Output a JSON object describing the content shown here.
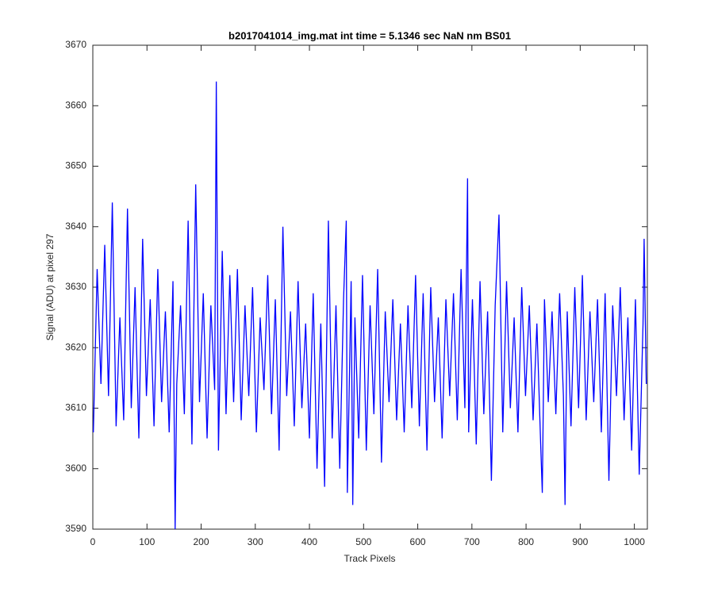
{
  "chart_data": {
    "type": "line",
    "title": "b2017041014_img.mat int time = 5.1346 sec  NaN nm BS01",
    "x_label": "Track Pixels",
    "y_label": "Signal (ADU) at pixel 297",
    "xlim": [
      0,
      1024
    ],
    "ylim": [
      3590,
      3670
    ],
    "xticks": [
      0,
      100,
      200,
      300,
      400,
      500,
      600,
      700,
      800,
      900,
      1000
    ],
    "yticks": [
      3590,
      3600,
      3610,
      3620,
      3630,
      3640,
      3650,
      3660,
      3670
    ],
    "box": true,
    "series": [
      {
        "color": "#0000ff",
        "x": [
          1,
          8,
          15,
          22,
          29,
          36,
          43,
          50,
          57,
          64,
          71,
          78,
          85,
          92,
          99,
          106,
          113,
          120,
          127,
          134,
          141,
          148,
          152,
          155,
          162,
          169,
          176,
          183,
          190,
          197,
          204,
          211,
          218,
          225,
          228,
          232,
          239,
          246,
          253,
          260,
          267,
          274,
          281,
          288,
          295,
          302,
          309,
          316,
          323,
          330,
          337,
          344,
          351,
          358,
          365,
          372,
          379,
          386,
          393,
          400,
          407,
          414,
          421,
          428,
          435,
          442,
          449,
          456,
          463,
          468,
          470,
          477,
          480,
          484,
          491,
          498,
          505,
          512,
          519,
          526,
          533,
          540,
          547,
          554,
          561,
          568,
          575,
          582,
          589,
          596,
          603,
          610,
          617,
          624,
          631,
          638,
          645,
          652,
          659,
          666,
          673,
          680,
          687,
          692,
          694,
          701,
          708,
          715,
          722,
          729,
          736,
          743,
          750,
          757,
          764,
          771,
          778,
          785,
          792,
          799,
          806,
          813,
          820,
          827,
          830,
          834,
          841,
          848,
          855,
          862,
          869,
          872,
          876,
          883,
          890,
          897,
          904,
          911,
          918,
          925,
          932,
          939,
          946,
          953,
          960,
          967,
          974,
          981,
          988,
          995,
          1002,
          1009,
          1016,
          1018,
          1022
        ],
        "values": [
          3606,
          3633,
          3614,
          3637,
          3612,
          3644,
          3607,
          3625,
          3608,
          3643,
          3610,
          3630,
          3605,
          3638,
          3612,
          3628,
          3607,
          3633,
          3611,
          3626,
          3606,
          3631,
          3590,
          3614,
          3627,
          3609,
          3641,
          3604,
          3647,
          3611,
          3629,
          3605,
          3627,
          3613,
          3664,
          3603,
          3636,
          3609,
          3632,
          3611,
          3633,
          3608,
          3627,
          3612,
          3630,
          3606,
          3625,
          3613,
          3632,
          3609,
          3628,
          3603,
          3640,
          3612,
          3626,
          3607,
          3631,
          3610,
          3624,
          3605,
          3629,
          3600,
          3624,
          3597,
          3641,
          3605,
          3627,
          3600,
          3628,
          3641,
          3596,
          3631,
          3594,
          3625,
          3605,
          3632,
          3603,
          3627,
          3609,
          3633,
          3601,
          3626,
          3611,
          3628,
          3608,
          3624,
          3606,
          3627,
          3610,
          3632,
          3607,
          3629,
          3603,
          3630,
          3611,
          3625,
          3605,
          3628,
          3612,
          3629,
          3608,
          3633,
          3610,
          3648,
          3606,
          3628,
          3604,
          3631,
          3609,
          3626,
          3598,
          3627,
          3642,
          3606,
          3631,
          3610,
          3625,
          3606,
          3630,
          3612,
          3627,
          3608,
          3624,
          3604,
          3596,
          3628,
          3611,
          3626,
          3609,
          3629,
          3612,
          3594,
          3626,
          3607,
          3630,
          3610,
          3632,
          3608,
          3626,
          3611,
          3628,
          3606,
          3629,
          3598,
          3627,
          3612,
          3630,
          3608,
          3625,
          3603,
          3628,
          3599,
          3624,
          3638,
          3614
        ]
      }
    ]
  }
}
